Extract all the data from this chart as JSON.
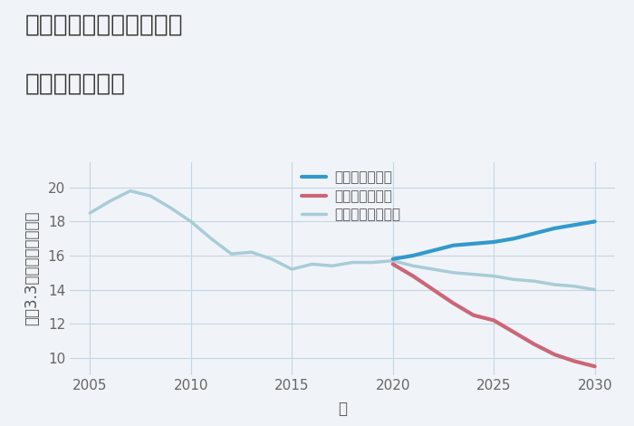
{
  "title_line1": "三重県松阪市小舟江町の",
  "title_line2": "土地の価格推移",
  "xlabel": "年",
  "ylabel": "坪（3.3㎡）単価（万円）",
  "xlim": [
    2004,
    2031
  ],
  "ylim": [
    9,
    21.5
  ],
  "yticks": [
    10,
    12,
    14,
    16,
    18,
    20
  ],
  "xticks": [
    2005,
    2010,
    2015,
    2020,
    2025,
    2030
  ],
  "background_color": "#f0f4f8",
  "grid_color": "#c5d5e5",
  "normal_scenario": {
    "label": "ノーマルシナリオ",
    "color": "#a8ccd8",
    "linewidth": 2.5,
    "years": [
      2005,
      2006,
      2007,
      2008,
      2009,
      2010,
      2011,
      2012,
      2013,
      2014,
      2015,
      2016,
      2017,
      2018,
      2019,
      2020,
      2021,
      2022,
      2023,
      2024,
      2025,
      2026,
      2027,
      2028,
      2029,
      2030
    ],
    "values": [
      18.5,
      19.2,
      19.8,
      19.5,
      18.8,
      18.0,
      17.0,
      16.1,
      16.2,
      15.8,
      15.2,
      15.5,
      15.4,
      15.6,
      15.6,
      15.7,
      15.4,
      15.2,
      15.0,
      14.9,
      14.8,
      14.6,
      14.5,
      14.3,
      14.2,
      14.0
    ]
  },
  "good_scenario": {
    "label": "グッドシナリオ",
    "color": "#3399cc",
    "linewidth": 3.0,
    "years": [
      2020,
      2021,
      2022,
      2023,
      2024,
      2025,
      2026,
      2027,
      2028,
      2029,
      2030
    ],
    "values": [
      15.8,
      16.0,
      16.3,
      16.6,
      16.7,
      16.8,
      17.0,
      17.3,
      17.6,
      17.8,
      18.0
    ]
  },
  "bad_scenario": {
    "label": "バッドシナリオ",
    "color": "#cc6677",
    "linewidth": 3.0,
    "years": [
      2020,
      2021,
      2022,
      2023,
      2024,
      2025,
      2026,
      2027,
      2028,
      2029,
      2030
    ],
    "values": [
      15.5,
      14.8,
      14.0,
      13.2,
      12.5,
      12.2,
      11.5,
      10.8,
      10.2,
      9.8,
      9.5
    ]
  },
  "title_fontsize": 19,
  "axis_fontsize": 12,
  "tick_fontsize": 11,
  "legend_fontsize": 11
}
